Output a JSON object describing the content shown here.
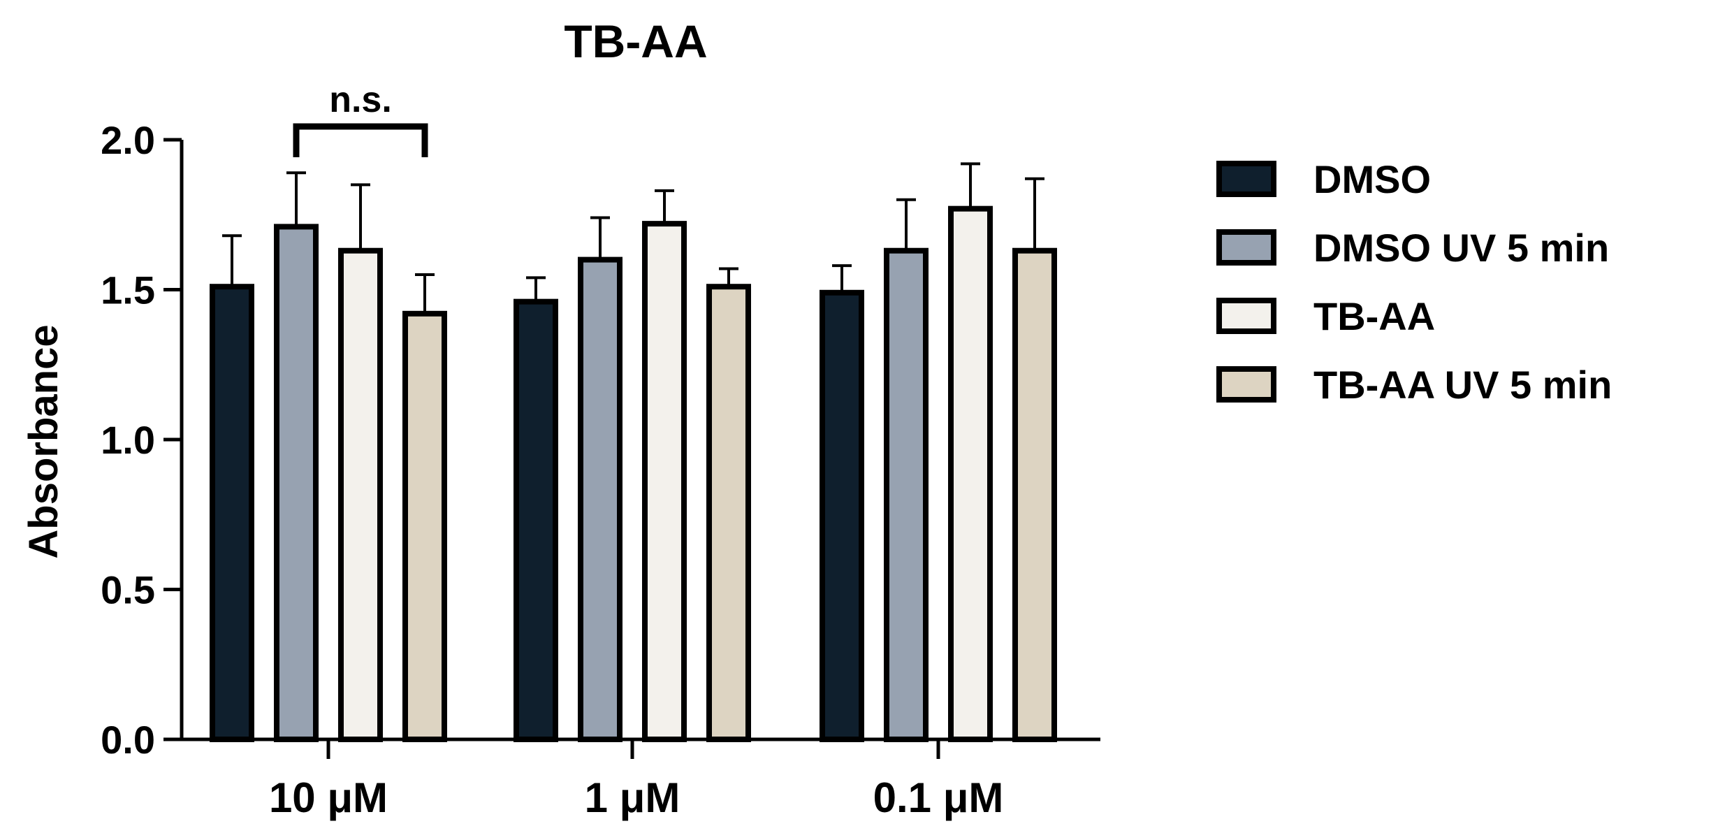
{
  "chart_data": {
    "type": "bar",
    "title": "TB-AA",
    "xlabel": "",
    "ylabel": "Absorbance",
    "ylim": [
      0,
      2.0
    ],
    "yticks": [
      0.0,
      0.5,
      1.0,
      1.5,
      2.0
    ],
    "ytick_labels": [
      "0.0",
      "0.5",
      "1.0",
      "1.5",
      "2.0"
    ],
    "grid": false,
    "legend_position": "right",
    "categories": [
      "10 μM",
      "1 μM",
      "0.1 μM"
    ],
    "series": [
      {
        "name": "DMSO",
        "color": "#0f1f2d",
        "values": [
          1.51,
          1.46,
          1.49
        ],
        "errors": [
          0.17,
          0.08,
          0.09
        ]
      },
      {
        "name": "DMSO UV 5 min",
        "color": "#97a2b1",
        "values": [
          1.71,
          1.6,
          1.63
        ],
        "errors": [
          0.18,
          0.14,
          0.17
        ]
      },
      {
        "name": "TB-AA",
        "color": "#f3f1ec",
        "values": [
          1.63,
          1.72,
          1.77
        ],
        "errors": [
          0.22,
          0.11,
          0.15
        ]
      },
      {
        "name": "TB-AA UV 5 min",
        "color": "#ddd4c2",
        "values": [
          1.42,
          1.51,
          1.63
        ],
        "errors": [
          0.13,
          0.06,
          0.24
        ]
      }
    ],
    "annotations": [
      {
        "text": "n.s.",
        "category": "10 μM",
        "from_series": 1,
        "to_series": 3,
        "y": 2.0
      }
    ]
  }
}
